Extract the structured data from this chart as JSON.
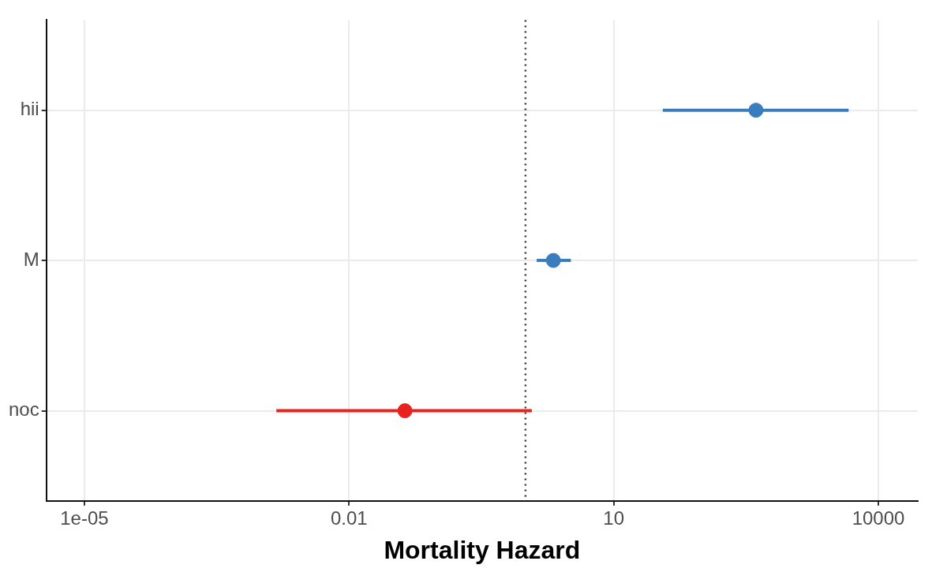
{
  "chart_data": {
    "type": "scatter",
    "orientation": "horizontal",
    "xlabel": "Mortality Hazard",
    "categories": [
      "hii",
      "M",
      "noc"
    ],
    "values": [
      410,
      2.07,
      0.043
    ],
    "errors": [
      [
        36,
        4600
      ],
      [
        1.34,
        3.27
      ],
      [
        0.0015,
        1.18
      ]
    ],
    "colors": [
      "#3a7dbd",
      "#3a7dbd",
      "#e8231f"
    ],
    "log": "x",
    "xlim": [
      3.7e-06,
      28000
    ],
    "xticks": [
      {
        "value": 1e-05,
        "label": "1e-05"
      },
      0.01,
      10,
      10000
    ],
    "grid": true,
    "marker": "circle",
    "legend": false,
    "ref_lines": [
      {
        "axis": "x",
        "value": 1,
        "color": "#333333",
        "line_style": "dotted"
      }
    ]
  }
}
